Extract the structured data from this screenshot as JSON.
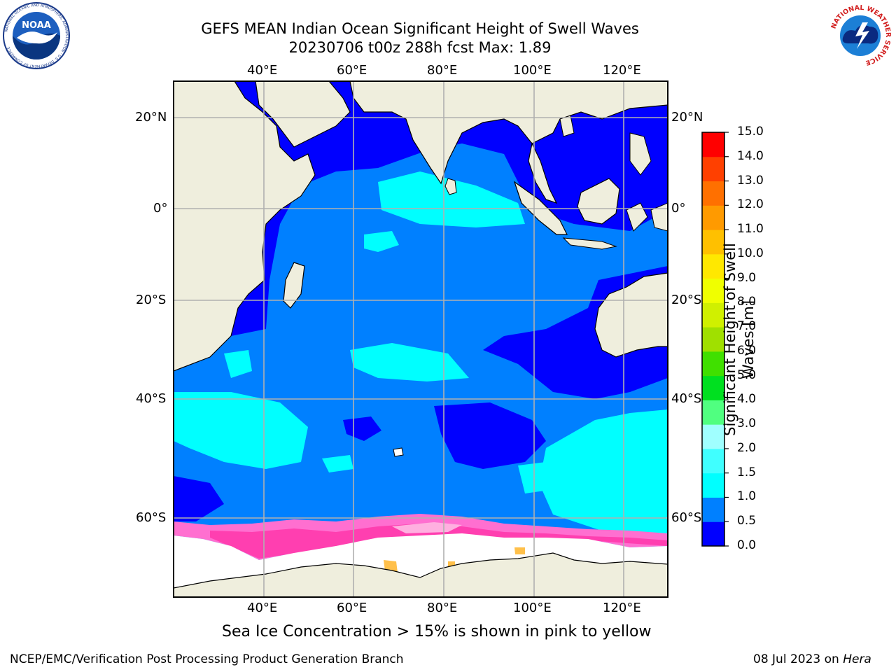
{
  "header": {
    "title_line1": "GEFS MEAN Indian Ocean Significant Height of Swell Waves",
    "title_line2": "20230706 t00z 288h fcst   Max: 1.89"
  },
  "logos": {
    "left": {
      "name": "NOAA",
      "ring_text": "NATIONAL OCEANIC AND ATMOSPHERIC ADMINISTRATION · U.S. DEPARTMENT OF COMMERCE"
    },
    "right": {
      "name": "NATIONAL WEATHER SERVICE"
    }
  },
  "map": {
    "lon_ticks": [
      "40°E",
      "60°E",
      "80°E",
      "100°E",
      "120°E"
    ],
    "lat_ticks": [
      "20°N",
      "0°",
      "20°S",
      "40°S",
      "60°S"
    ],
    "colors": {
      "land": "#efeedd",
      "ice": "#ffffff",
      "gridline": "#b0b0b0",
      "coast": "#000000"
    }
  },
  "colorbar": {
    "label_line1": "Significant Height of Swell",
    "label_line2": "Waves [m]",
    "ticks": [
      "0.0",
      "0.5",
      "1.0",
      "1.5",
      "2.0",
      "3.0",
      "4.0",
      "5.0",
      "6.0",
      "7.0",
      "8.0",
      "9.0",
      "10.0",
      "11.0",
      "12.0",
      "13.0",
      "14.0",
      "15.0"
    ],
    "colors": [
      "#0000ff",
      "#0080ff",
      "#00ffff",
      "#40ffff",
      "#a0ffff",
      "#50ff80",
      "#00e020",
      "#40e000",
      "#a0e000",
      "#d0f000",
      "#f0ff00",
      "#ffe800",
      "#ffc000",
      "#ff9a00",
      "#ff7000",
      "#ff4000",
      "#ff0000"
    ]
  },
  "caption": "Sea Ice Concentration > 15% is shown in pink to yellow",
  "footer": {
    "left": "NCEP/EMC/Verification Post Processing Product Generation Branch",
    "right_date": "08 Jul 2023 on ",
    "right_host": "Hera"
  }
}
